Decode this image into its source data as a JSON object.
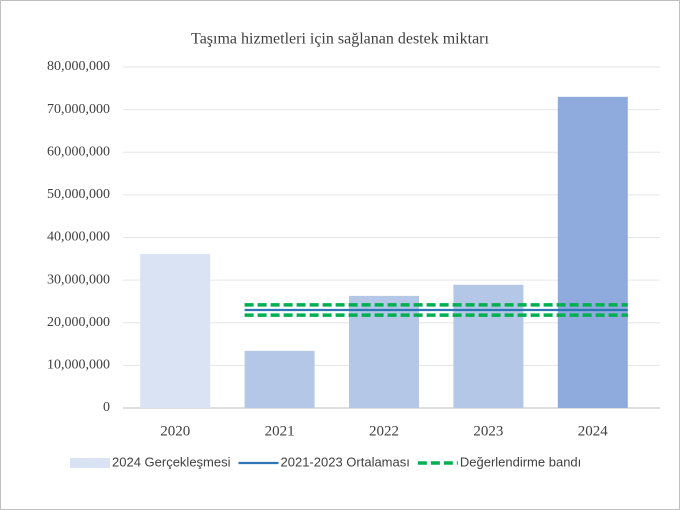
{
  "chart_data": {
    "type": "bar",
    "title": "Taşıma hizmetleri için sağlanan destek miktarı",
    "categories": [
      "2020",
      "2021",
      "2022",
      "2023",
      "2024"
    ],
    "series": [
      {
        "name": "2024 Gerçekleşmesi",
        "type": "bar",
        "color": "#dae3f3",
        "colors": [
          "#dae3f3",
          "#b4c7e7",
          "#b4c7e7",
          "#b4c7e7",
          "#8faadc"
        ],
        "values": [
          36100000,
          13400000,
          26300000,
          28900000,
          73000000
        ]
      },
      {
        "name": "2021-2023 Ortalaması",
        "type": "line",
        "color": "#2e75b6",
        "values": [
          null,
          23000000,
          23000000,
          23000000,
          23000000
        ]
      }
    ],
    "band": {
      "name": "Değerlendirme bandı",
      "color": "#00b050",
      "upper": [
        null,
        24200000,
        24200000,
        24200000,
        24200000
      ],
      "lower": [
        null,
        21800000,
        21800000,
        21800000,
        21800000
      ]
    },
    "ylim": [
      0,
      80000000
    ],
    "yticks": [
      0,
      {
        "value": 10000000,
        "label": "10,000,000"
      },
      {
        "value": 20000000,
        "label": "20,000,000"
      },
      {
        "value": 30000000,
        "label": "30,000,000"
      },
      {
        "value": 40000000,
        "label": "40,000,000"
      },
      {
        "value": 50000000,
        "label": "50,000,000"
      },
      {
        "value": 60000000,
        "label": "60,000,000"
      },
      {
        "value": 70000000,
        "label": "70,000,000"
      },
      {
        "value": 80000000,
        "label": "80,000,000"
      }
    ],
    "grid": true,
    "legend": "bottom"
  }
}
